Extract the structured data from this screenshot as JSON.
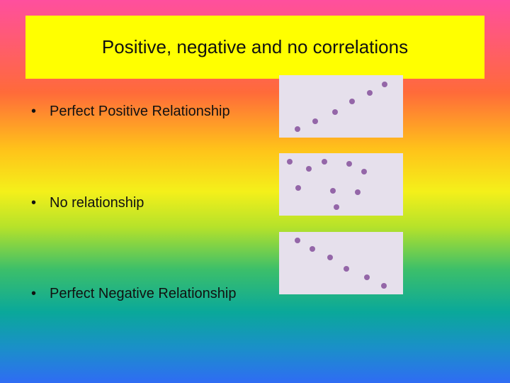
{
  "title": "Positive, negative and no correlations",
  "bullets": [
    "Perfect Positive Relationship",
    "No relationship",
    "Perfect Negative Relationship"
  ]
}
